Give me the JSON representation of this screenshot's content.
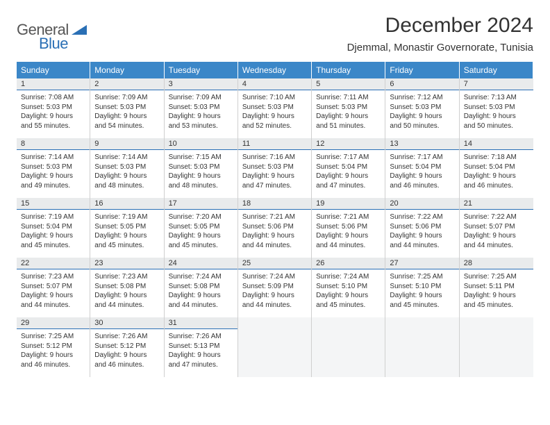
{
  "logo": {
    "text1": "General",
    "text2": "Blue",
    "shape_color": "#2a6fb5"
  },
  "title": "December 2024",
  "location": "Djemmal, Monastir Governorate, Tunisia",
  "colors": {
    "header_bg": "#3b87c8",
    "header_fg": "#ffffff",
    "daynum_bg": "#e9ebec",
    "daynum_underline": "#2a6fb5",
    "cell_border": "#cfcfcf",
    "text": "#333333",
    "empty_bg": "#f4f5f6"
  },
  "day_labels": [
    "Sunday",
    "Monday",
    "Tuesday",
    "Wednesday",
    "Thursday",
    "Friday",
    "Saturday"
  ],
  "field_labels": {
    "sunrise": "Sunrise: ",
    "sunset": "Sunset: ",
    "daylight": "Daylight: "
  },
  "days": [
    {
      "n": "1",
      "sr": "7:08 AM",
      "ss": "5:03 PM",
      "dl": "9 hours and 55 minutes."
    },
    {
      "n": "2",
      "sr": "7:09 AM",
      "ss": "5:03 PM",
      "dl": "9 hours and 54 minutes."
    },
    {
      "n": "3",
      "sr": "7:09 AM",
      "ss": "5:03 PM",
      "dl": "9 hours and 53 minutes."
    },
    {
      "n": "4",
      "sr": "7:10 AM",
      "ss": "5:03 PM",
      "dl": "9 hours and 52 minutes."
    },
    {
      "n": "5",
      "sr": "7:11 AM",
      "ss": "5:03 PM",
      "dl": "9 hours and 51 minutes."
    },
    {
      "n": "6",
      "sr": "7:12 AM",
      "ss": "5:03 PM",
      "dl": "9 hours and 50 minutes."
    },
    {
      "n": "7",
      "sr": "7:13 AM",
      "ss": "5:03 PM",
      "dl": "9 hours and 50 minutes."
    },
    {
      "n": "8",
      "sr": "7:14 AM",
      "ss": "5:03 PM",
      "dl": "9 hours and 49 minutes."
    },
    {
      "n": "9",
      "sr": "7:14 AM",
      "ss": "5:03 PM",
      "dl": "9 hours and 48 minutes."
    },
    {
      "n": "10",
      "sr": "7:15 AM",
      "ss": "5:03 PM",
      "dl": "9 hours and 48 minutes."
    },
    {
      "n": "11",
      "sr": "7:16 AM",
      "ss": "5:03 PM",
      "dl": "9 hours and 47 minutes."
    },
    {
      "n": "12",
      "sr": "7:17 AM",
      "ss": "5:04 PM",
      "dl": "9 hours and 47 minutes."
    },
    {
      "n": "13",
      "sr": "7:17 AM",
      "ss": "5:04 PM",
      "dl": "9 hours and 46 minutes."
    },
    {
      "n": "14",
      "sr": "7:18 AM",
      "ss": "5:04 PM",
      "dl": "9 hours and 46 minutes."
    },
    {
      "n": "15",
      "sr": "7:19 AM",
      "ss": "5:04 PM",
      "dl": "9 hours and 45 minutes."
    },
    {
      "n": "16",
      "sr": "7:19 AM",
      "ss": "5:05 PM",
      "dl": "9 hours and 45 minutes."
    },
    {
      "n": "17",
      "sr": "7:20 AM",
      "ss": "5:05 PM",
      "dl": "9 hours and 45 minutes."
    },
    {
      "n": "18",
      "sr": "7:21 AM",
      "ss": "5:06 PM",
      "dl": "9 hours and 44 minutes."
    },
    {
      "n": "19",
      "sr": "7:21 AM",
      "ss": "5:06 PM",
      "dl": "9 hours and 44 minutes."
    },
    {
      "n": "20",
      "sr": "7:22 AM",
      "ss": "5:06 PM",
      "dl": "9 hours and 44 minutes."
    },
    {
      "n": "21",
      "sr": "7:22 AM",
      "ss": "5:07 PM",
      "dl": "9 hours and 44 minutes."
    },
    {
      "n": "22",
      "sr": "7:23 AM",
      "ss": "5:07 PM",
      "dl": "9 hours and 44 minutes."
    },
    {
      "n": "23",
      "sr": "7:23 AM",
      "ss": "5:08 PM",
      "dl": "9 hours and 44 minutes."
    },
    {
      "n": "24",
      "sr": "7:24 AM",
      "ss": "5:08 PM",
      "dl": "9 hours and 44 minutes."
    },
    {
      "n": "25",
      "sr": "7:24 AM",
      "ss": "5:09 PM",
      "dl": "9 hours and 44 minutes."
    },
    {
      "n": "26",
      "sr": "7:24 AM",
      "ss": "5:10 PM",
      "dl": "9 hours and 45 minutes."
    },
    {
      "n": "27",
      "sr": "7:25 AM",
      "ss": "5:10 PM",
      "dl": "9 hours and 45 minutes."
    },
    {
      "n": "28",
      "sr": "7:25 AM",
      "ss": "5:11 PM",
      "dl": "9 hours and 45 minutes."
    },
    {
      "n": "29",
      "sr": "7:25 AM",
      "ss": "5:12 PM",
      "dl": "9 hours and 46 minutes."
    },
    {
      "n": "30",
      "sr": "7:26 AM",
      "ss": "5:12 PM",
      "dl": "9 hours and 46 minutes."
    },
    {
      "n": "31",
      "sr": "7:26 AM",
      "ss": "5:13 PM",
      "dl": "9 hours and 47 minutes."
    }
  ],
  "trailing_empty": 4
}
